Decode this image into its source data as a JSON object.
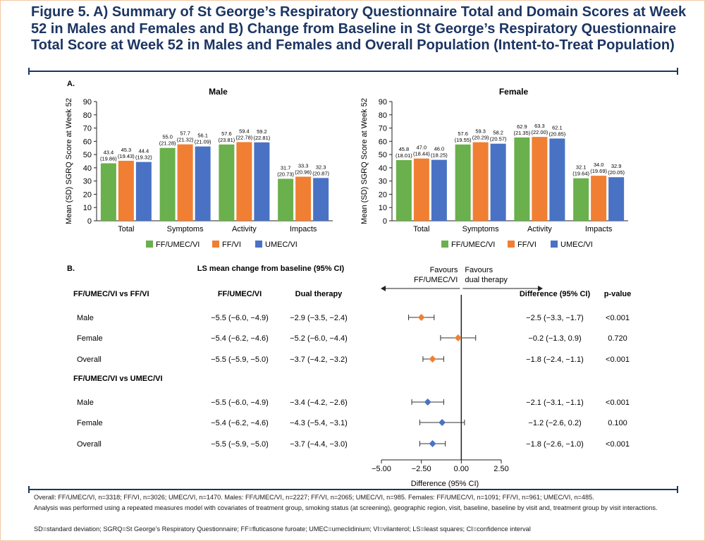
{
  "title": "Figure 5. A) Summary of St George’s Respiratory Questionnaire Total and Domain Scores at Week 52 in Males and Females and B) Change from Baseline in St George’s Respiratory Questionnaire Total Score at Week 52 in Males and Females and Overall Population (Intent-to-Treat Population)",
  "colors": {
    "ff_umec_vi": "#6ab04c",
    "ff_vi": "#f07f33",
    "umec_vi": "#4a72c4",
    "title": "#1c3563"
  },
  "panel_a_label": "A.",
  "panel_b_label": "B.",
  "chart_data": [
    {
      "type": "bar",
      "title": "Male",
      "ylabel": "Mean (SD) SGRQ Score at Week 52",
      "ylim": [
        0,
        90
      ],
      "yticks": [
        0,
        10,
        20,
        30,
        40,
        50,
        60,
        70,
        80,
        90
      ],
      "categories": [
        "Total",
        "Symptoms",
        "Activity",
        "Impacts"
      ],
      "legend": "bottom",
      "series": [
        {
          "name": "FF/UMEC/VI",
          "values": [
            43.4,
            55.0,
            57.6,
            31.7
          ],
          "sd": [
            "(19.86)",
            "(21.28)",
            "(23.81)",
            "(20.73)"
          ]
        },
        {
          "name": "FF/VI",
          "values": [
            45.3,
            57.7,
            59.4,
            33.3
          ],
          "sd": [
            "(19.43)",
            "(21.32)",
            "(22.78)",
            "(20.96)"
          ]
        },
        {
          "name": "UMEC/VI",
          "values": [
            44.4,
            56.1,
            59.2,
            32.3
          ],
          "sd": [
            "(19.32)",
            "(21.09)",
            "(22.81)",
            "(20.87)"
          ]
        }
      ]
    },
    {
      "type": "bar",
      "title": "Female",
      "ylabel": "Mean (SD) SGRQ Score at Week 52",
      "ylim": [
        0,
        90
      ],
      "yticks": [
        0,
        10,
        20,
        30,
        40,
        50,
        60,
        70,
        80,
        90
      ],
      "categories": [
        "Total",
        "Symptoms",
        "Activity",
        "Impacts"
      ],
      "legend": "bottom",
      "series": [
        {
          "name": "FF/UMEC/VI",
          "values": [
            45.8,
            57.6,
            62.9,
            32.1
          ],
          "sd": [
            "(18.01)",
            "(19.55)",
            "(21.35)",
            "(19.64)"
          ]
        },
        {
          "name": "FF/VI",
          "values": [
            47.0,
            59.3,
            63.3,
            34.0
          ],
          "sd": [
            "(18.44)",
            "(20.29)",
            "(22.00)",
            "(19.69)"
          ]
        },
        {
          "name": "UMEC/VI",
          "values": [
            46.0,
            58.2,
            62.1,
            32.9
          ],
          "sd": [
            "(18.25)",
            "(20.57)",
            "(20.85)",
            "(20.05)"
          ]
        }
      ]
    },
    {
      "type": "scatter",
      "title": "LS mean change from baseline (95% CI)",
      "xlabel": "Difference (95% CI)",
      "xlim": [
        -5.0,
        2.5
      ],
      "xticks": [
        "−5.00",
        "−2.50",
        "0.00",
        "2.50"
      ],
      "xtick_values": [
        -5.0,
        -2.5,
        0.0,
        2.5
      ],
      "favours_left": [
        "Favours",
        "FF/UMEC/VI"
      ],
      "favours_right": [
        "Favours",
        "dual therapy"
      ],
      "col_headers": {
        "triple": "FF/UMEC/VI",
        "dual": "Dual therapy",
        "diff": "Difference (95% CI)",
        "p": "p-value"
      },
      "groups": [
        {
          "label": "FF/UMEC/VI vs FF/VI",
          "color": "#f07f33",
          "rows": [
            {
              "label": "Male",
              "triple": "−5.5 (−6.0, −4.9)",
              "dual": "−2.9 (−3.5, −2.4)",
              "diff": "−2.5 (−3.3, −1.7)",
              "p": "<0.001",
              "est": -2.5,
              "lo": -3.3,
              "hi": -1.7
            },
            {
              "label": "Female",
              "triple": "−5.4 (−6.2, −4.6)",
              "dual": "−5.2 (−6.0, −4.4)",
              "diff": "−0.2 (−1.3, 0.9)",
              "p": "0.720",
              "est": -0.2,
              "lo": -1.3,
              "hi": 0.9
            },
            {
              "label": "Overall",
              "triple": "−5.5 (−5.9, −5.0)",
              "dual": "−3.7 (−4.2, −3.2)",
              "diff": "−1.8 (−2.4, −1.1)",
              "p": "<0.001",
              "est": -1.8,
              "lo": -2.4,
              "hi": -1.1
            }
          ]
        },
        {
          "label": "FF/UMEC/VI vs UMEC/VI",
          "color": "#4a72c4",
          "rows": [
            {
              "label": "Male",
              "triple": "−5.5 (−6.0, −4.9)",
              "dual": "−3.4 (−4.2, −2.6)",
              "diff": "−2.1 (−3.1, −1.1)",
              "p": "<0.001",
              "est": -2.1,
              "lo": -3.1,
              "hi": -1.1
            },
            {
              "label": "Female",
              "triple": "−5.4 (−6.2, −4.6)",
              "dual": "−4.3 (−5.4, −3.1)",
              "diff": "−1.2 (−2.6, 0.2)",
              "p": "0.100",
              "est": -1.2,
              "lo": -2.6,
              "hi": 0.2
            },
            {
              "label": "Overall",
              "triple": "−5.5 (−5.9, −5.0)",
              "dual": "−3.7 (−4.4, −3.0)",
              "diff": "−1.8 (−2.6, −1.0)",
              "p": "<0.001",
              "est": -1.8,
              "lo": -2.6,
              "hi": -1.0
            }
          ]
        }
      ]
    }
  ],
  "footnotes": {
    "line1": "Overall: FF/UMEC/VI, n=3318; FF/VI, n=3026; UMEC/VI, n=1470. Males: FF/UMEC/VI, n=2227; FF/VI, n=2065; UMEC/VI, n=985. Females: FF/UMEC/VI, n=1091; FF/VI, n=961; UMEC/VI, n=485.",
    "line2": "Analysis was performed using a repeated measures model with covariates of treatment group, smoking status (at screening), geographic region, visit, baseline, baseline by visit and, treatment group by visit interactions.",
    "line3": "SD=standard deviation; SGRQ=St George’s Respiratory Questionnaire; FF=fluticasone furoate; UMEC=umeclidinium; VI=vilanterol; LS=least squares; CI=confidence interval"
  }
}
